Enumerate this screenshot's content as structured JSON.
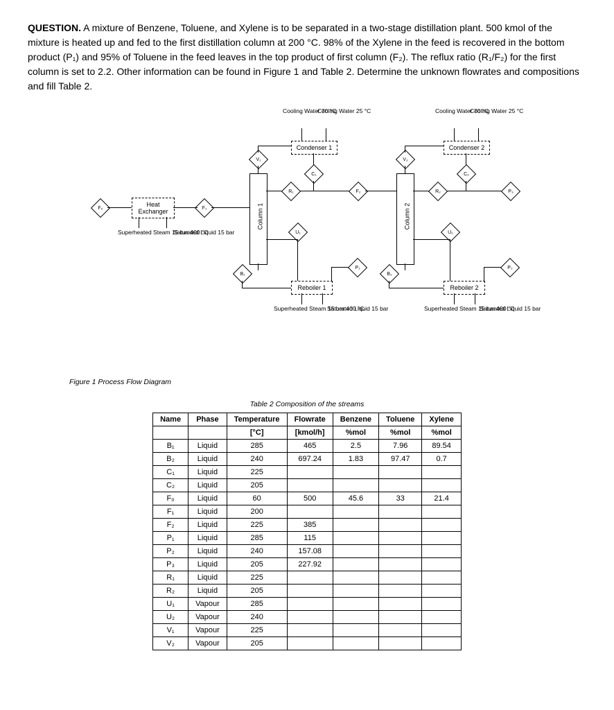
{
  "question": {
    "label": "QUESTION.",
    "body": "A mixture of Benzene, Toluene, and Xylene is to be separated in a two-stage distillation plant. 500 kmol of the mixture is heated up and fed to the first distillation column at 200 °C. 98% of the Xylene in the feed is recovered in the bottom product (P₁) and 95% of Toluene in the feed leaves in the top product of first column (F₂). The reflux ratio (R₁/F₂) for the first column is set to 2.2. Other information can be found in Figure 1 and Table 2. Determine the unknown flowrates and compositions and fill Table 2."
  },
  "diagram": {
    "heat_exchanger": "Heat Exchanger",
    "condenser1": "Condenser 1",
    "condenser2": "Condenser 2",
    "reboiler1": "Reboiler 1",
    "reboiler2": "Reboiler 2",
    "column1": "Column 1",
    "column2": "Column 2",
    "cooling_water_in": "Cooling Water 70 °C",
    "cooling_water_out": "Cooling Water 25 °C",
    "superheated_steam": "Superheated Steam 15 bar 400 °C",
    "saturated_liquid": "Saturated Liquid 15 bar",
    "nodes": {
      "F0": "F₀",
      "F1": "F₁",
      "F2": "F₂",
      "V1": "V₁",
      "V2": "V₂",
      "C1": "C₁",
      "C2": "C₂",
      "R1": "R₁",
      "R2": "R₂",
      "U1": "U₁",
      "U2": "U₂",
      "B1": "B₁",
      "B2": "B₂",
      "P1": "P₁",
      "P2": "P₂",
      "P3": "P₃"
    }
  },
  "figure_caption": "Figure 1 Process Flow Diagram",
  "table_caption": "Table 2 Composition of the streams",
  "table": {
    "headers": [
      "Name",
      "Phase",
      "Temperature",
      "Flowrate",
      "Benzene",
      "Toluene",
      "Xylene"
    ],
    "units": [
      "",
      "",
      "[°C]",
      "[kmol/h]",
      "%mol",
      "%mol",
      "%mol"
    ],
    "rows": [
      [
        "B₁",
        "Liquid",
        "285",
        "465",
        "2.5",
        "7.96",
        "89.54"
      ],
      [
        "B₂",
        "Liquid",
        "240",
        "697.24",
        "1.83",
        "97.47",
        "0.7"
      ],
      [
        "C₁",
        "Liquid",
        "225",
        "",
        "",
        "",
        ""
      ],
      [
        "C₂",
        "Liquid",
        "205",
        "",
        "",
        "",
        ""
      ],
      [
        "F₀",
        "Liquid",
        "60",
        "500",
        "45.6",
        "33",
        "21.4"
      ],
      [
        "F₁",
        "Liquid",
        "200",
        "",
        "",
        "",
        ""
      ],
      [
        "F₂",
        "Liquid",
        "225",
        "385",
        "",
        "",
        ""
      ],
      [
        "P₁",
        "Liquid",
        "285",
        "115",
        "",
        "",
        ""
      ],
      [
        "P₂",
        "Liquid",
        "240",
        "157.08",
        "",
        "",
        ""
      ],
      [
        "P₃",
        "Liquid",
        "205",
        "227.92",
        "",
        "",
        ""
      ],
      [
        "R₁",
        "Liquid",
        "225",
        "",
        "",
        "",
        ""
      ],
      [
        "R₂",
        "Liquid",
        "205",
        "",
        "",
        "",
        ""
      ],
      [
        "U₁",
        "Vapour",
        "285",
        "",
        "",
        "",
        ""
      ],
      [
        "U₂",
        "Vapour",
        "240",
        "",
        "",
        "",
        ""
      ],
      [
        "V₁",
        "Vapour",
        "225",
        "",
        "",
        "",
        ""
      ],
      [
        "V₂",
        "Vapour",
        "205",
        "",
        "",
        "",
        ""
      ]
    ]
  }
}
